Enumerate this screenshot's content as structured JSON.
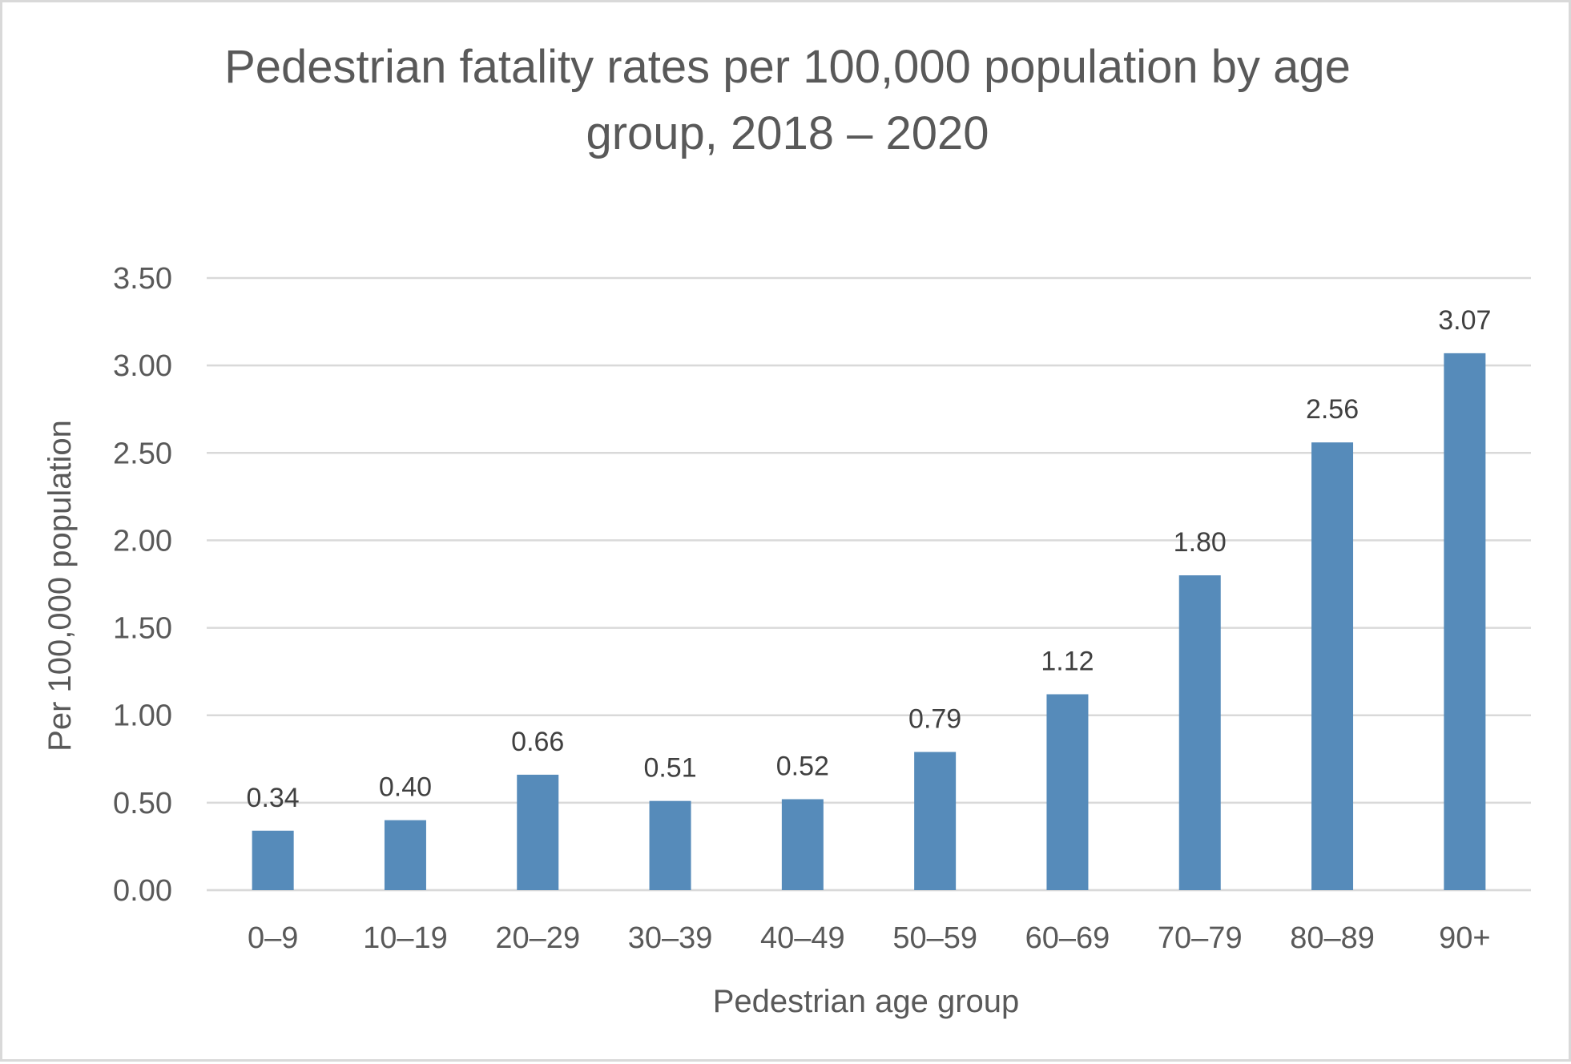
{
  "chart_data": {
    "type": "bar",
    "title_lines": [
      "Pedestrian fatality rates per 100,000 population by age",
      "group, 2018 – 2020"
    ],
    "xlabel": "Pedestrian age group",
    "ylabel": "Per 100,000 population",
    "categories": [
      "0–9",
      "10–19",
      "20–29",
      "30–39",
      "40–49",
      "50–59",
      "60–69",
      "70–79",
      "80–89",
      "90+"
    ],
    "values": [
      0.34,
      0.4,
      0.66,
      0.51,
      0.52,
      0.79,
      1.12,
      1.8,
      2.56,
      3.07
    ],
    "data_labels": [
      "0.34",
      "0.40",
      "0.66",
      "0.51",
      "0.52",
      "0.79",
      "1.12",
      "1.80",
      "2.56",
      "3.07"
    ],
    "ylim": [
      0,
      3.5
    ],
    "y_ticks": [
      0,
      0.5,
      1.0,
      1.5,
      2.0,
      2.5,
      3.0,
      3.5
    ],
    "y_tick_labels": [
      "0.00",
      "0.50",
      "1.00",
      "1.50",
      "2.00",
      "2.50",
      "3.00",
      "3.50"
    ],
    "grid": true,
    "legend": "none",
    "colors": {
      "bar": "#568bba",
      "grid": "#d9d9d9",
      "text": "#595959",
      "data_label": "#404040",
      "border": "#d9d9d9"
    }
  }
}
